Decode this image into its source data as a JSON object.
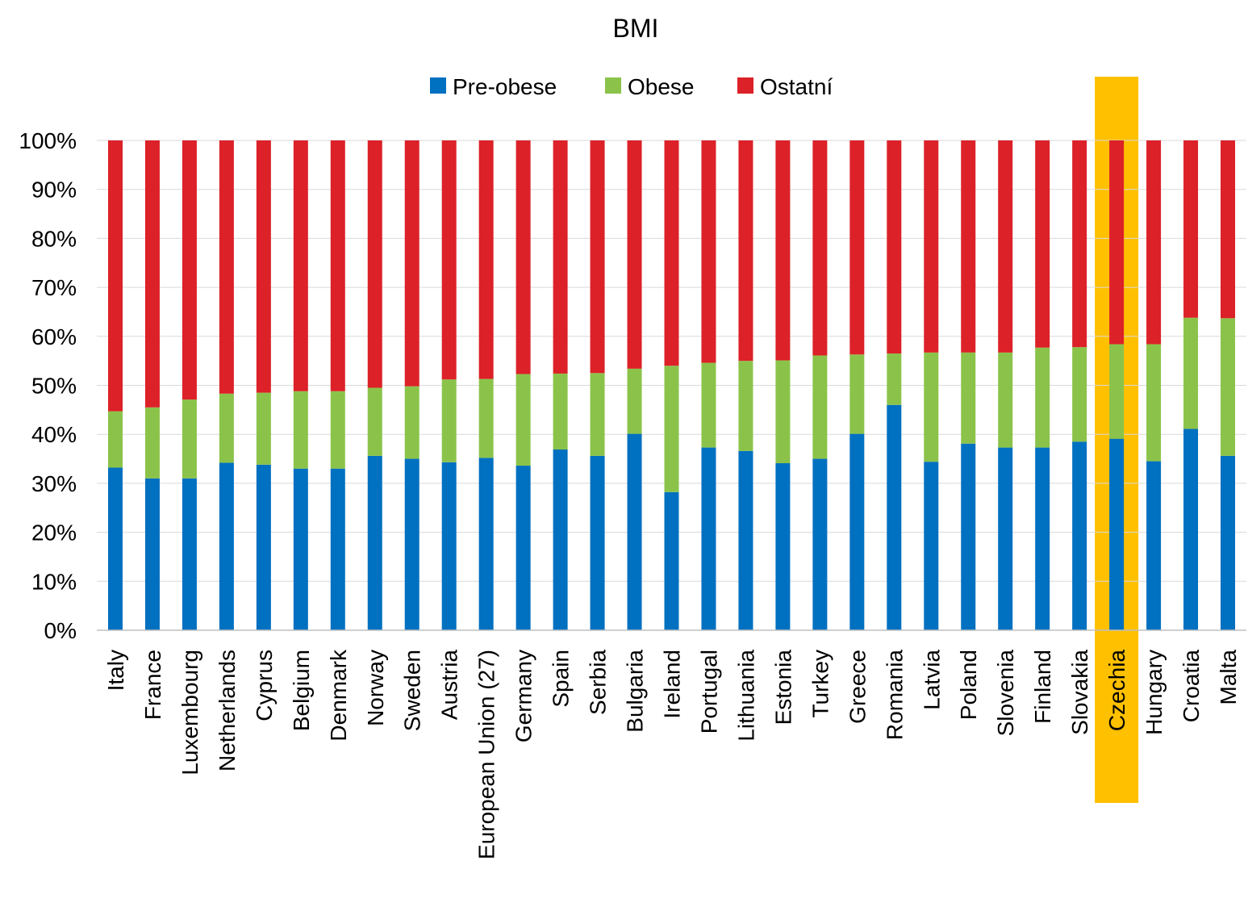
{
  "chart_data": {
    "type": "bar",
    "stacked": true,
    "title": "BMI",
    "xlabel": "",
    "ylabel": "",
    "ylim": [
      0,
      100
    ],
    "y_tick_labels": [
      "0%",
      "10%",
      "20%",
      "30%",
      "40%",
      "50%",
      "60%",
      "70%",
      "80%",
      "90%",
      "100%"
    ],
    "y_tick_values": [
      0,
      10,
      20,
      30,
      40,
      50,
      60,
      70,
      80,
      90,
      100
    ],
    "grid": true,
    "legend_position": "top-center",
    "highlight_category": "Czechia",
    "highlight_color": "#FFC000",
    "categories": [
      "Italy",
      "France",
      "Luxembourg",
      "Netherlands",
      "Cyprus",
      "Belgium",
      "Denmark",
      "Norway",
      "Sweden",
      "Austria",
      "European Union (27)",
      "Germany",
      "Spain",
      "Serbia",
      "Bulgaria",
      "Ireland",
      "Portugal",
      "Lithuania",
      "Estonia",
      "Turkey",
      "Greece",
      "Romania",
      "Latvia",
      "Poland",
      "Slovenia",
      "Finland",
      "Slovakia",
      "Czechia",
      "Hungary",
      "Croatia",
      "Malta"
    ],
    "series": [
      {
        "name": "Pre-obese",
        "color": "#0070C0",
        "values": [
          33.2,
          31.0,
          31.0,
          34.2,
          33.8,
          33.0,
          33.0,
          35.6,
          35.0,
          34.3,
          35.2,
          33.6,
          36.9,
          35.6,
          40.1,
          28.2,
          37.3,
          36.6,
          34.1,
          35.0,
          40.1,
          46.0,
          34.4,
          38.1,
          37.3,
          37.3,
          38.5,
          39.1,
          34.5,
          41.1,
          35.6
        ]
      },
      {
        "name": "Obese",
        "color": "#8BC34A",
        "values": [
          11.5,
          14.5,
          16.1,
          14.1,
          14.7,
          15.8,
          15.8,
          13.9,
          14.8,
          16.9,
          16.1,
          18.7,
          15.5,
          16.9,
          13.3,
          25.8,
          17.3,
          18.4,
          21.0,
          21.1,
          16.2,
          10.5,
          22.3,
          18.6,
          19.4,
          20.4,
          19.3,
          19.3,
          23.9,
          22.7,
          28.1
        ]
      },
      {
        "name": "Ostatní",
        "color": "#DC2128",
        "values": [
          55.3,
          54.5,
          52.9,
          51.7,
          51.5,
          51.2,
          51.2,
          50.5,
          50.2,
          48.8,
          48.7,
          47.7,
          47.6,
          47.5,
          46.6,
          46.0,
          45.4,
          45.0,
          44.9,
          43.9,
          43.7,
          43.5,
          43.3,
          43.3,
          43.3,
          42.3,
          42.2,
          41.6,
          41.6,
          36.2,
          36.3
        ]
      }
    ]
  }
}
